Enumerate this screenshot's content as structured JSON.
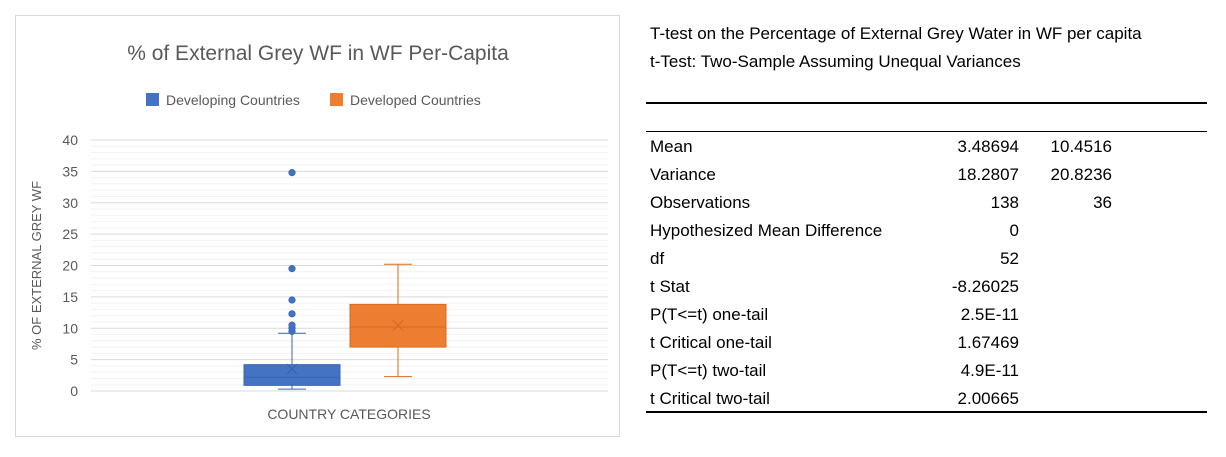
{
  "chart_data": {
    "type": "box",
    "title": "% of External Grey WF in WF Per-Capita",
    "xlabel": "COUNTRY CATEGORIES",
    "ylabel": "% OF EXTERNAL GREY WF",
    "ylim": [
      0,
      40
    ],
    "yticks": [
      0,
      5,
      10,
      15,
      20,
      25,
      30,
      35,
      40
    ],
    "grid": true,
    "legend_position": "top",
    "series": [
      {
        "name": "Developing Countries",
        "color": "#4472c4",
        "min": 0.3,
        "q1": 0.9,
        "median": 2.2,
        "q3": 4.2,
        "whisker_high": 9.2,
        "mean": 3.49,
        "outliers": [
          9.5,
          10.0,
          10.5,
          12.3,
          14.5,
          19.5,
          34.8
        ]
      },
      {
        "name": "Developed Countries",
        "color": "#ed7d31",
        "min": 2.3,
        "q1": 7.0,
        "median": 10.2,
        "q3": 13.8,
        "whisker_high": 20.2,
        "mean": 10.45,
        "outliers": []
      }
    ]
  },
  "stats": {
    "title_line1": "T-test on the Percentage of External Grey Water in WF per capita",
    "title_line2": "t-Test: Two-Sample Assuming Unequal Variances",
    "rows": [
      {
        "label": "Mean",
        "v1": "3.48694",
        "v2": "10.4516"
      },
      {
        "label": "Variance",
        "v1": "18.2807",
        "v2": "20.8236"
      },
      {
        "label": "Observations",
        "v1": "138",
        "v2": "36"
      },
      {
        "label": "Hypothesized Mean Difference",
        "v1": "0",
        "v2": ""
      },
      {
        "label": "df",
        "v1": "52",
        "v2": ""
      },
      {
        "label": "t Stat",
        "v1": "-8.26025",
        "v2": ""
      },
      {
        "label": "P(T<=t) one-tail",
        "v1": "2.5E-11",
        "v2": ""
      },
      {
        "label": "t Critical one-tail",
        "v1": "1.67469",
        "v2": ""
      },
      {
        "label": "P(T<=t) two-tail",
        "v1": "4.9E-11",
        "v2": ""
      },
      {
        "label": "t Critical two-tail",
        "v1": "2.00665",
        "v2": ""
      }
    ]
  }
}
